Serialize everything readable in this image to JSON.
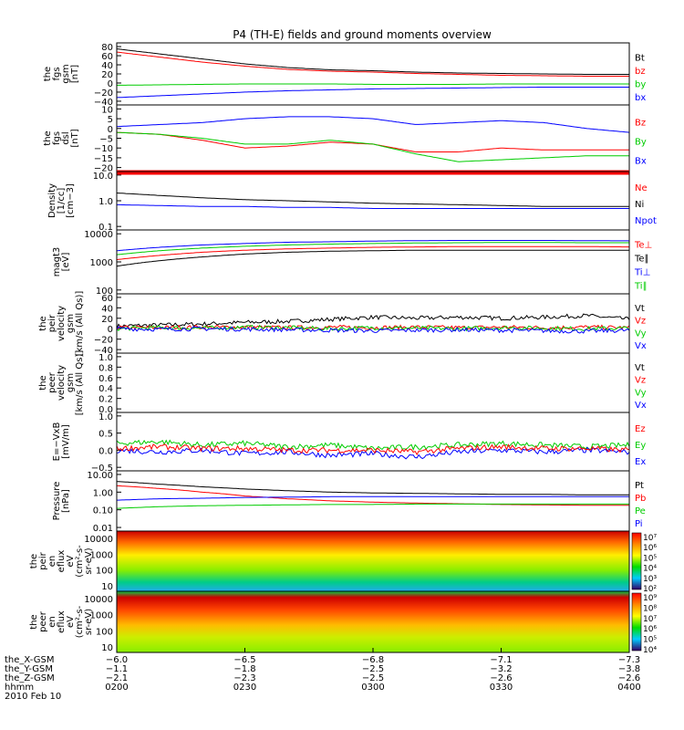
{
  "title": "P4 (TH-E) fields and ground moments overview",
  "colors": {
    "black": "#000000",
    "red": "#ff0000",
    "green": "#00cc00",
    "blue": "#0000ff"
  },
  "chart_data": [
    {
      "id": "fgs_gsm",
      "type": "line",
      "ylabel": [
        "the",
        "fgs",
        "gsm",
        "[nT]"
      ],
      "yticks": [
        "80",
        "60",
        "40",
        "20",
        "0",
        "−20",
        "−40"
      ],
      "legend": [
        {
          "name": "Bt",
          "color": "black"
        },
        {
          "name": "bz",
          "color": "red"
        },
        {
          "name": "by",
          "color": "green"
        },
        {
          "name": "bx",
          "color": "blue"
        }
      ],
      "series": [
        {
          "name": "Bt",
          "color": "black",
          "values": [
            75,
            64,
            53,
            42,
            34,
            29,
            27,
            24,
            22,
            21,
            20,
            19,
            19
          ]
        },
        {
          "name": "bz",
          "color": "red",
          "values": [
            68,
            57,
            46,
            37,
            30,
            26,
            24,
            21,
            19,
            17,
            16,
            15,
            15
          ]
        },
        {
          "name": "by",
          "color": "green",
          "values": [
            -5,
            -4,
            -3,
            -2,
            -2,
            -2,
            -3,
            -3,
            -3,
            -2,
            -2,
            -2,
            -2
          ]
        },
        {
          "name": "bx",
          "color": "blue",
          "values": [
            -32,
            -28,
            -24,
            -20,
            -17,
            -15,
            -13,
            -12,
            -11,
            -10,
            -9,
            -9,
            -9
          ]
        }
      ]
    },
    {
      "id": "fgs_dsl",
      "type": "line",
      "ylabel": [
        "the",
        "fgs",
        "dsl",
        "[nT]"
      ],
      "yticks": [
        "10",
        "5",
        "0",
        "−5",
        "−10",
        "−15",
        "−20"
      ],
      "legend": [
        {
          "name": "Bz",
          "color": "red"
        },
        {
          "name": "By",
          "color": "green"
        },
        {
          "name": "Bx",
          "color": "blue"
        }
      ],
      "series": [
        {
          "name": "Bz",
          "color": "red",
          "values": [
            -2,
            -3,
            -6,
            -10,
            -9,
            -7,
            -8,
            -12,
            -12,
            -10,
            -11,
            -11,
            -11
          ]
        },
        {
          "name": "By",
          "color": "green",
          "values": [
            -2,
            -3,
            -5,
            -8,
            -8,
            -6,
            -8,
            -13,
            -17,
            -16,
            -15,
            -14,
            -14
          ]
        },
        {
          "name": "Bx",
          "color": "blue",
          "values": [
            1,
            2,
            3,
            5,
            6,
            6,
            5,
            2,
            3,
            4,
            3,
            0,
            -2
          ]
        }
      ]
    },
    {
      "id": "density",
      "type": "line",
      "ylabel": [
        "Density",
        "[1/cc]",
        "[cm−3]"
      ],
      "yticks": [
        "10.0",
        "1.0",
        "0.1"
      ],
      "legend": [
        {
          "name": "Ne",
          "color": "red"
        },
        {
          "name": "Ni",
          "color": "black"
        },
        {
          "name": "Npot",
          "color": "blue"
        }
      ],
      "series": [
        {
          "name": "Ne",
          "color": "red",
          "values": [
            20,
            20,
            20,
            20,
            20,
            20,
            20,
            20,
            20,
            20,
            20,
            20,
            20
          ]
        },
        {
          "name": "Ni",
          "color": "black",
          "values": [
            2.0,
            1.6,
            1.3,
            1.1,
            1.0,
            0.9,
            0.8,
            0.75,
            0.7,
            0.65,
            0.6,
            0.6,
            0.6
          ]
        },
        {
          "name": "Npot",
          "color": "blue",
          "values": [
            0.7,
            0.65,
            0.6,
            0.6,
            0.55,
            0.55,
            0.5,
            0.5,
            0.5,
            0.5,
            0.5,
            0.5,
            0.5
          ]
        }
      ]
    },
    {
      "id": "temperature",
      "type": "line",
      "ylabel": [
        "magt3",
        "[eV]"
      ],
      "yticks": [
        "10000",
        "1000",
        "100"
      ],
      "legend": [
        {
          "name": "Te⊥",
          "color": "red"
        },
        {
          "name": "Te∥",
          "color": "black"
        },
        {
          "name": "Ti⊥",
          "color": "blue"
        },
        {
          "name": "Ti∥",
          "color": "green"
        }
      ],
      "series": [
        {
          "name": "Te⊥",
          "color": "red",
          "values": [
            1200,
            1700,
            2200,
            2600,
            2900,
            3100,
            3300,
            3400,
            3500,
            3500,
            3500,
            3500,
            3400
          ]
        },
        {
          "name": "Te∥",
          "color": "black",
          "values": [
            700,
            1100,
            1500,
            1900,
            2200,
            2400,
            2500,
            2600,
            2600,
            2600,
            2600,
            2600,
            2600
          ]
        },
        {
          "name": "Ti⊥",
          "color": "blue",
          "values": [
            2500,
            3300,
            4000,
            4500,
            5000,
            5200,
            5500,
            5700,
            5800,
            5800,
            5800,
            5700,
            5600
          ]
        },
        {
          "name": "Ti∥",
          "color": "green",
          "values": [
            1800,
            2500,
            3100,
            3600,
            4000,
            4300,
            4500,
            4700,
            4800,
            4900,
            4900,
            4800,
            4800
          ]
        }
      ]
    },
    {
      "id": "peir_velocity",
      "type": "line",
      "ylabel": [
        "the",
        "peir",
        "velocity",
        "gsm",
        "[km/s (All Qs)]"
      ],
      "yticks": [
        "60",
        "40",
        "20",
        "0",
        "−20",
        "−40"
      ],
      "legend": [
        {
          "name": "Vt",
          "color": "black"
        },
        {
          "name": "Vz",
          "color": "red"
        },
        {
          "name": "Vy",
          "color": "green"
        },
        {
          "name": "Vx",
          "color": "blue"
        }
      ],
      "series": [
        {
          "name": "Vt",
          "color": "black",
          "values": [
            5,
            7,
            9,
            12,
            14,
            18,
            22,
            20,
            22,
            20,
            22,
            25,
            18
          ]
        },
        {
          "name": "Vz",
          "color": "red",
          "values": [
            2,
            2,
            3,
            3,
            2,
            3,
            2,
            3,
            2,
            3,
            2,
            3,
            2
          ]
        },
        {
          "name": "Vy",
          "color": "green",
          "values": [
            0,
            2,
            1,
            3,
            2,
            0,
            2,
            1,
            0,
            2,
            1,
            0,
            1
          ]
        },
        {
          "name": "Vx",
          "color": "blue",
          "values": [
            0,
            -1,
            0,
            -1,
            -2,
            -3,
            -4,
            -3,
            -2,
            -3,
            -4,
            -5,
            -3
          ]
        }
      ]
    },
    {
      "id": "peer_velocity",
      "type": "line",
      "ylabel": [
        "the",
        "peer",
        "velocity",
        "gsm",
        "[km/s (All Qs)]"
      ],
      "yticks": [
        "1.0",
        "0.8",
        "0.6",
        "0.4",
        "0.2",
        "0.0"
      ],
      "legend": [
        {
          "name": "Vt",
          "color": "black"
        },
        {
          "name": "Vz",
          "color": "red"
        },
        {
          "name": "Vy",
          "color": "green"
        },
        {
          "name": "Vx",
          "color": "blue"
        }
      ],
      "series": []
    },
    {
      "id": "efield",
      "type": "line",
      "ylabel": [
        "E=−VxB",
        "[mV/m]"
      ],
      "yticks": [
        "1.0",
        "0.5",
        "0.0",
        "−0.5"
      ],
      "legend": [
        {
          "name": "Ez",
          "color": "red"
        },
        {
          "name": "Ey",
          "color": "green"
        },
        {
          "name": "Ex",
          "color": "blue"
        }
      ],
      "series": [
        {
          "name": "Ey",
          "color": "green",
          "values": [
            0.2,
            0.25,
            0.15,
            0.2,
            0.1,
            0.15,
            0.05,
            0.1,
            0.15,
            0.2,
            0.15,
            0.1,
            0.15
          ]
        },
        {
          "name": "Ex",
          "color": "blue",
          "values": [
            0.0,
            -0.05,
            0.0,
            -0.1,
            -0.05,
            -0.15,
            -0.1,
            -0.2,
            -0.05,
            0.0,
            -0.05,
            0.0,
            -0.05
          ]
        },
        {
          "name": "Ez",
          "color": "red",
          "values": [
            0.05,
            0.1,
            0.05,
            0.05,
            0.0,
            0.0,
            0.0,
            -0.05,
            0.05,
            0.1,
            0.05,
            0.05,
            0.0
          ]
        }
      ]
    },
    {
      "id": "pressure",
      "type": "line",
      "ylabel": [
        "Pressure",
        "[nPa]"
      ],
      "yticks": [
        "10.00",
        "1.00",
        "0.10",
        "0.01"
      ],
      "legend": [
        {
          "name": "Pt",
          "color": "black"
        },
        {
          "name": "Pb",
          "color": "red"
        },
        {
          "name": "Pe",
          "color": "green"
        },
        {
          "name": "Pi",
          "color": "blue"
        }
      ],
      "series": [
        {
          "name": "Pt",
          "color": "black",
          "values": [
            4.0,
            2.8,
            2.0,
            1.5,
            1.2,
            1.0,
            0.9,
            0.85,
            0.8,
            0.75,
            0.75,
            0.7,
            0.7
          ]
        },
        {
          "name": "Pb",
          "color": "red",
          "values": [
            2.3,
            1.6,
            1.0,
            0.6,
            0.42,
            0.32,
            0.27,
            0.24,
            0.22,
            0.2,
            0.19,
            0.18,
            0.18
          ]
        },
        {
          "name": "Pe",
          "color": "green",
          "values": [
            0.12,
            0.15,
            0.17,
            0.18,
            0.19,
            0.2,
            0.2,
            0.21,
            0.21,
            0.21,
            0.21,
            0.21,
            0.21
          ]
        },
        {
          "name": "Pi",
          "color": "blue",
          "values": [
            0.35,
            0.42,
            0.45,
            0.5,
            0.52,
            0.55,
            0.55,
            0.55,
            0.55,
            0.55,
            0.55,
            0.55,
            0.55
          ]
        }
      ]
    },
    {
      "id": "peir_spec",
      "type": "heatmap",
      "ylabel": [
        "the",
        "peir",
        "en",
        "eflux",
        "eV",
        "(cm²-s-",
        "sr-eV)"
      ],
      "yticks": [
        "10000",
        "1000",
        "100",
        "10"
      ],
      "cbar_ticks": [
        "10⁷",
        "10⁶",
        "10⁵",
        "10⁴",
        "10³",
        "10²"
      ]
    },
    {
      "id": "peer_spec",
      "type": "heatmap",
      "ylabel": [
        "the",
        "peer",
        "en",
        "eflux",
        "eV",
        "(cm²-s-",
        "sr-eV)"
      ],
      "yticks": [
        "10000",
        "1000",
        "100",
        "10"
      ],
      "cbar_ticks": [
        "10⁹",
        "10⁸",
        "10⁷",
        "10⁶",
        "10⁵",
        "10⁴"
      ]
    }
  ],
  "xaxis": {
    "rows": [
      {
        "label": "the_X-GSM",
        "values": [
          "−6.0",
          "−6.5",
          "−6.8",
          "−7.1",
          "−7.3"
        ]
      },
      {
        "label": "the_Y-GSM",
        "values": [
          "−1.1",
          "−1.8",
          "−2.5",
          "−3.2",
          "−3.8"
        ]
      },
      {
        "label": "the_Z-GSM",
        "values": [
          "−2.1",
          "−2.3",
          "−2.5",
          "−2.6",
          "−2.6"
        ]
      },
      {
        "label": "hhmm",
        "values": [
          "0200",
          "0230",
          "0300",
          "0330",
          "0400"
        ]
      }
    ],
    "date": "2010 Feb 10"
  }
}
